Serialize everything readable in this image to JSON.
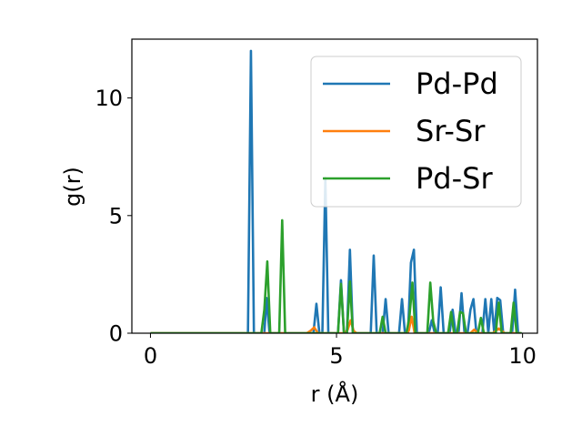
{
  "chart_data": {
    "type": "line",
    "xlabel": "r (Å)",
    "ylabel": "g(r)",
    "xlim": [
      -0.5,
      10.4
    ],
    "ylim": [
      0,
      12.5
    ],
    "xticks": [
      0,
      5,
      10
    ],
    "yticks": [
      0,
      5,
      10
    ],
    "grid": false,
    "legend_position": "top-right",
    "series": [
      {
        "name": "Pd-Pd",
        "color": "#1f77b4",
        "x": [
          0,
          2.55,
          2.62,
          2.7,
          2.78,
          2.86,
          2.94,
          3.0,
          3.06,
          3.12,
          3.2,
          3.28,
          3.8,
          4.3,
          4.38,
          4.46,
          4.54,
          4.62,
          4.7,
          4.78,
          4.86,
          4.96,
          5.04,
          5.12,
          5.2,
          5.28,
          5.36,
          5.44,
          5.52,
          5.84,
          5.92,
          6.0,
          6.08,
          6.16,
          6.24,
          6.32,
          6.4,
          6.6,
          6.68,
          6.76,
          6.84,
          6.92,
          7.0,
          7.08,
          7.16,
          7.24,
          7.32,
          7.4,
          7.48,
          7.56,
          7.64,
          7.72,
          7.8,
          7.88,
          7.96,
          8.04,
          8.12,
          8.2,
          8.28,
          8.36,
          8.44,
          8.52,
          8.6,
          8.68,
          8.76,
          8.84,
          8.92,
          9.0,
          9.08,
          9.16,
          9.24,
          9.32,
          9.4,
          9.48,
          9.56,
          9.64,
          9.72,
          9.8,
          9.88,
          9.96
        ],
        "values": [
          0,
          0,
          0,
          12.0,
          0,
          0,
          0,
          0,
          0,
          1.5,
          0,
          0,
          0,
          0,
          0,
          1.25,
          0,
          0,
          6.6,
          0,
          0,
          0,
          0,
          2.25,
          0,
          0,
          3.55,
          0,
          0,
          0,
          0,
          3.3,
          0,
          0,
          0,
          1.45,
          0,
          0,
          0,
          1.45,
          0,
          0,
          3.0,
          3.55,
          0,
          0,
          0,
          0,
          0,
          0.55,
          0,
          0,
          1.95,
          0,
          0,
          0,
          1.0,
          0,
          0,
          1.7,
          0,
          0,
          1.0,
          1.45,
          0,
          0,
          0,
          1.45,
          0,
          1.45,
          0,
          1.5,
          1.4,
          0,
          0,
          0,
          0,
          1.85,
          0,
          0
        ]
      },
      {
        "name": "Sr-Sr",
        "color": "#ff7f0e",
        "x": [
          0,
          4.2,
          4.3,
          4.4,
          4.5,
          5.22,
          5.3,
          5.38,
          5.46,
          5.54,
          6.86,
          6.94,
          7.02,
          7.1,
          8.6,
          8.7,
          8.8,
          9.2,
          9.28,
          9.36,
          9.44,
          9.52,
          9.96
        ],
        "values": [
          0,
          0,
          0.1,
          0.25,
          0,
          0,
          0.15,
          0.55,
          0.1,
          0,
          0,
          0.1,
          0.7,
          0,
          0,
          0.15,
          0,
          0,
          0.1,
          0.2,
          0.1,
          0,
          0
        ]
      },
      {
        "name": "Pd-Sr",
        "color": "#2ca02c",
        "x": [
          0,
          2.9,
          2.98,
          3.06,
          3.14,
          3.22,
          3.3,
          3.38,
          3.46,
          3.54,
          3.62,
          3.7,
          4.96,
          5.04,
          5.12,
          5.2,
          5.28,
          5.36,
          5.44,
          5.52,
          6.0,
          6.08,
          6.16,
          6.24,
          6.32,
          6.4,
          6.72,
          6.8,
          6.88,
          6.96,
          7.04,
          7.12,
          7.2,
          7.28,
          7.36,
          7.44,
          7.52,
          7.6,
          7.68,
          7.76,
          7.84,
          7.92,
          8.0,
          8.08,
          8.16,
          8.24,
          8.32,
          8.4,
          8.48,
          8.56,
          8.64,
          8.72,
          8.8,
          8.88,
          8.96,
          9.04,
          9.12,
          9.2,
          9.28,
          9.36,
          9.44,
          9.52,
          9.6,
          9.68,
          9.76,
          9.84,
          9.92,
          9.98
        ],
        "values": [
          0,
          0,
          0,
          1.0,
          3.05,
          0,
          0,
          0,
          0,
          4.8,
          0,
          0,
          0,
          0,
          2.1,
          0,
          0,
          2.2,
          0,
          0,
          0,
          0,
          0,
          0.7,
          0,
          0,
          0,
          0,
          0,
          0.7,
          2.15,
          0,
          0,
          0,
          0,
          0,
          2.15,
          0.5,
          0,
          0,
          0,
          0,
          0,
          0.9,
          0,
          0,
          0.9,
          0.85,
          0,
          0,
          0,
          0,
          0,
          0.65,
          0,
          0,
          0,
          0,
          0,
          1.3,
          0,
          0,
          0,
          0,
          1.3,
          0,
          0,
          0
        ]
      }
    ]
  }
}
